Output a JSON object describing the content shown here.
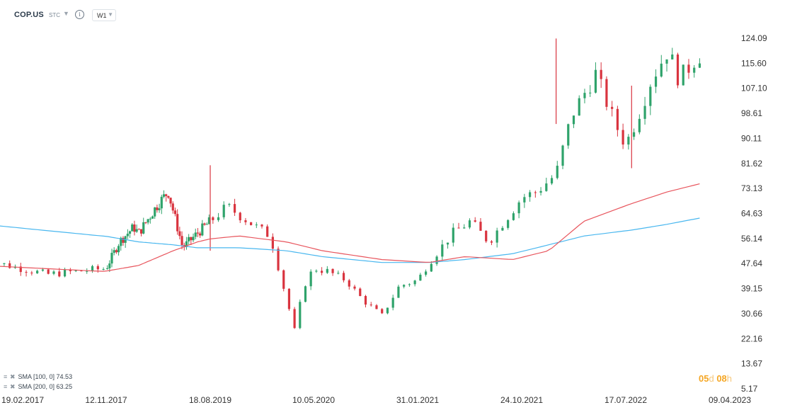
{
  "header": {
    "symbol": "COP.US",
    "symbol_type": "STC",
    "timeframe": "W1"
  },
  "legend": [
    {
      "label": "SMA  [100,  0]  74.53"
    },
    {
      "label": "SMA  [200,  0]  63.25"
    }
  ],
  "countdown": {
    "days": "05",
    "d": "d",
    "hours": "08",
    "h": "h"
  },
  "colors": {
    "up": "#2fa36b",
    "down": "#d9343f",
    "sma100": "#e8555d",
    "sma200": "#49b7ef",
    "grid": "#e6e9ec",
    "axis_text": "#333333"
  },
  "chart_data": {
    "type": "candlestick",
    "ylim": [
      5.17,
      124.09
    ],
    "y_ticks": [
      "124.09",
      "115.60",
      "107.10",
      "98.61",
      "90.11",
      "81.62",
      "73.13",
      "64.63",
      "56.14",
      "47.64",
      "39.15",
      "30.66",
      "22.16",
      "13.67",
      "5.17"
    ],
    "x_ticks": [
      "19.02.2017",
      "12.11.2017",
      "18.08.2019",
      "10.05.2020",
      "31.01.2021",
      "24.10.2021",
      "17.07.2022",
      "09.04.2023"
    ],
    "grid": false,
    "price_path": [
      [
        "2017-01-01",
        49
      ],
      [
        "2017-06-15",
        44
      ],
      [
        "2017-11-12",
        46
      ],
      [
        "2018-02-01",
        55
      ],
      [
        "2018-05-01",
        60
      ],
      [
        "2018-06-01",
        58
      ],
      [
        "2018-10-01",
        68
      ],
      [
        "2018-12-01",
        72
      ],
      [
        "2019-03-01",
        53
      ],
      [
        "2019-06-01",
        58
      ],
      [
        "2019-08-18",
        62
      ],
      [
        "2019-10-01",
        67
      ],
      [
        "2019-12-15",
        60
      ],
      [
        "2020-01-20",
        57
      ],
      [
        "2020-03-22",
        25
      ],
      [
        "2020-04-15",
        40
      ],
      [
        "2020-05-10",
        46
      ],
      [
        "2020-06-15",
        45
      ],
      [
        "2020-08-01",
        42
      ],
      [
        "2020-09-15",
        35
      ],
      [
        "2020-11-01",
        30
      ],
      [
        "2020-12-15",
        40
      ],
      [
        "2021-01-31",
        42
      ],
      [
        "2021-03-01",
        48
      ],
      [
        "2021-05-01",
        58
      ],
      [
        "2021-06-15",
        62
      ],
      [
        "2021-08-01",
        55
      ],
      [
        "2021-10-24",
        70
      ],
      [
        "2021-12-01",
        72
      ],
      [
        "2022-01-20",
        78
      ],
      [
        "2022-03-01",
        98
      ],
      [
        "2022-05-01",
        112
      ],
      [
        "2022-06-20",
        95
      ],
      [
        "2022-07-17",
        88
      ],
      [
        "2022-08-15",
        97
      ],
      [
        "2022-09-20",
        110
      ],
      [
        "2022-11-01",
        120
      ],
      [
        "2022-12-01",
        110
      ],
      [
        "2023-01-15",
        118
      ],
      [
        "2023-01-31",
        119
      ]
    ],
    "series": [
      {
        "name": "SMA [100, 0]",
        "last": 74.53
      },
      {
        "name": "SMA [200, 0]",
        "last": 63.25
      }
    ],
    "sma100_path": [
      [
        "2017-01-01",
        47
      ],
      [
        "2017-06-01",
        46
      ],
      [
        "2017-11-01",
        45
      ],
      [
        "2018-06-01",
        47
      ],
      [
        "2019-01-01",
        52
      ],
      [
        "2019-06-01",
        55
      ],
      [
        "2019-11-01",
        57
      ],
      [
        "2020-03-01",
        55
      ],
      [
        "2020-06-01",
        52
      ],
      [
        "2020-11-01",
        49
      ],
      [
        "2021-03-01",
        48
      ],
      [
        "2021-06-01",
        50
      ],
      [
        "2021-10-01",
        49
      ],
      [
        "2022-01-01",
        52
      ],
      [
        "2022-04-01",
        62
      ],
      [
        "2022-08-01",
        68
      ],
      [
        "2022-11-01",
        72
      ],
      [
        "2023-01-31",
        75
      ]
    ],
    "sma200_path": [
      [
        "2017-01-01",
        61
      ],
      [
        "2017-06-01",
        59
      ],
      [
        "2017-11-01",
        57
      ],
      [
        "2018-06-01",
        55
      ],
      [
        "2019-01-01",
        54
      ],
      [
        "2019-06-01",
        53
      ],
      [
        "2019-11-01",
        53
      ],
      [
        "2020-03-01",
        52
      ],
      [
        "2020-06-01",
        50
      ],
      [
        "2020-11-01",
        48
      ],
      [
        "2021-03-01",
        48
      ],
      [
        "2021-06-01",
        49
      ],
      [
        "2021-10-01",
        51
      ],
      [
        "2022-01-01",
        54
      ],
      [
        "2022-04-01",
        57
      ],
      [
        "2022-08-01",
        59
      ],
      [
        "2022-11-01",
        61
      ],
      [
        "2023-01-31",
        63.3
      ]
    ],
    "spikes": [
      {
        "date": "2019-08-18",
        "high": 81,
        "low": 52
      },
      {
        "date": "2022-01-20",
        "high": 124,
        "low": 95
      },
      {
        "date": "2022-08-01",
        "high": 108,
        "low": 80
      }
    ]
  }
}
